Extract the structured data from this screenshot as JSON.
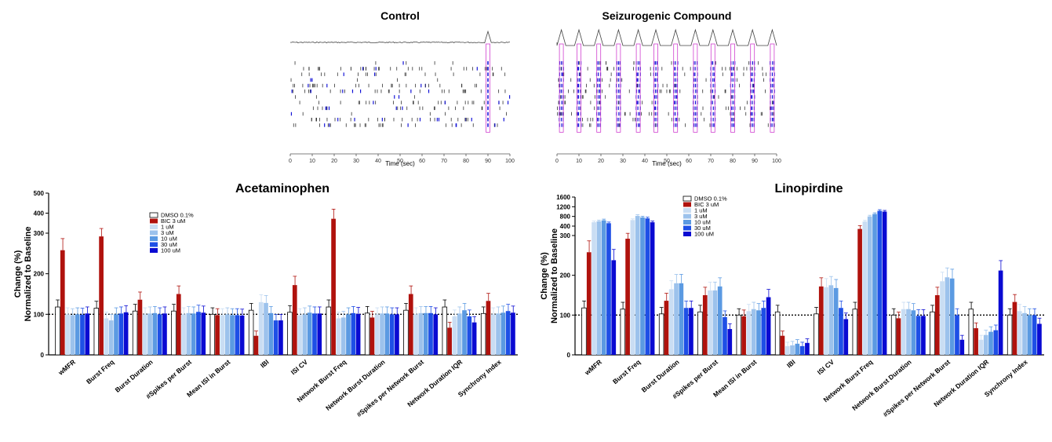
{
  "raster_panels": {
    "control": {
      "title": "Control",
      "xlabel": "Time (sec)",
      "ticks": [
        "0",
        "10",
        "20",
        "30",
        "40",
        "50",
        "60",
        "70",
        "80",
        "90",
        "100"
      ],
      "rows": 12,
      "highlight_times": [
        90
      ]
    },
    "seizure": {
      "title": "Seizurogenic Compound",
      "xlabel": "Time (sec)",
      "ticks": [
        "0",
        "10",
        "20",
        "30",
        "40",
        "50",
        "60",
        "70",
        "80",
        "90",
        "100"
      ],
      "rows": 12,
      "burst_times": [
        2,
        10,
        19,
        28,
        37,
        45,
        54,
        63,
        71,
        80,
        89,
        98
      ]
    }
  },
  "chart_data": [
    {
      "type": "bar",
      "title": "Acetaminophen",
      "ylabel": "Change (%)",
      "ylabel2": "Normalized to Baseline",
      "yticks": [
        "0",
        "100",
        "200",
        "300",
        "400",
        "500"
      ],
      "ylim": [
        0,
        500
      ],
      "broken_axis": "compressed above 300",
      "baseline": 100,
      "categories": [
        "wMFR",
        "Burst Freq",
        "Burst Duration",
        "#Spikes per Burst",
        "Mean ISI in Burst",
        "IBI",
        "ISI CV",
        "Network Burst Freq",
        "Network Burst Duration",
        "#Spikes per Network Burst",
        "Network Duration IQR",
        "Synchrony Index"
      ],
      "series": [
        {
          "name": "DMSO 0.1%",
          "color": "#ffffff",
          "values": [
            118,
            115,
            108,
            108,
            100,
            110,
            105,
            118,
            103,
            110,
            118,
            102
          ]
        },
        {
          "name": "BIC 3 uM",
          "color": "#b0120d",
          "values": [
            258,
            292,
            136,
            150,
            98,
            47,
            172,
            372,
            92,
            150,
            67,
            133
          ]
        },
        {
          "name": "1 uM",
          "color": "#c9ddf3",
          "values": [
            100,
            90,
            100,
            100,
            98,
            130,
            98,
            90,
            100,
            100,
            95,
            100
          ]
        },
        {
          "name": "3 uM",
          "color": "#9cc2ec",
          "values": [
            98,
            85,
            102,
            103,
            100,
            128,
            100,
            92,
            102,
            103,
            102,
            102
          ]
        },
        {
          "name": "10 uM",
          "color": "#5b9ae2",
          "values": [
            100,
            100,
            103,
            102,
            98,
            103,
            104,
            100,
            102,
            103,
            110,
            104
          ]
        },
        {
          "name": "30 uM",
          "color": "#1e4fe6",
          "values": [
            99,
            102,
            100,
            106,
            98,
            85,
            102,
            103,
            100,
            103,
            95,
            108
          ]
        },
        {
          "name": "100 uM",
          "color": "#0a0ad2",
          "values": [
            102,
            105,
            102,
            104,
            97,
            85,
            102,
            101,
            100,
            100,
            80,
            104
          ]
        }
      ],
      "significant": [
        [
          1,
          0
        ],
        [
          1,
          1
        ],
        [
          1,
          2
        ],
        [
          1,
          3
        ],
        [
          1,
          6
        ],
        [
          1,
          7
        ],
        [
          1,
          9
        ],
        [
          1,
          10
        ],
        [
          1,
          11
        ],
        [
          5,
          5
        ],
        [
          6,
          5
        ]
      ]
    },
    {
      "type": "bar",
      "title": "Linopirdine",
      "ylabel": "Change (%)",
      "ylabel2": "Normalized to Baseline",
      "yticks": [
        "0",
        "100",
        "200",
        "300",
        "400",
        "800",
        "1200",
        "1600"
      ],
      "ylim": [
        0,
        1600
      ],
      "broken_axis": "break at 300",
      "baseline": 100,
      "categories": [
        "wMFR",
        "Burst Freq",
        "Burst Duration",
        "#Spikes per Burst",
        "Mean ISI in Burst",
        "IBI",
        "ISI CV",
        "Network Burst Freq",
        "Network Burst Duration",
        "#Spikes per Network Burst",
        "Network Duration IQR",
        "Synchrony Index"
      ],
      "series": [
        {
          "name": "DMSO 0.1%",
          "color": "#ffffff",
          "values": [
            118,
            115,
            103,
            108,
            100,
            108,
            103,
            115,
            100,
            108,
            115,
            100
          ]
        },
        {
          "name": "BIC 3 uM",
          "color": "#b0120d",
          "values": [
            258,
            292,
            136,
            150,
            97,
            48,
            172,
            370,
            92,
            150,
            67,
            133
          ]
        },
        {
          "name": "1 uM",
          "color": "#c9ddf3",
          "values": [
            560,
            650,
            165,
            162,
            110,
            22,
            170,
            590,
            115,
            185,
            38,
            110
          ]
        },
        {
          "name": "3 uM",
          "color": "#9cc2ec",
          "values": [
            600,
            820,
            180,
            162,
            115,
            24,
            175,
            800,
            115,
            195,
            50,
            105
          ]
        },
        {
          "name": "10 uM",
          "color": "#5b9ae2",
          "values": [
            640,
            760,
            180,
            172,
            112,
            28,
            168,
            900,
            112,
            192,
            58,
            100
          ]
        },
        {
          "name": "30 uM",
          "color": "#1e4fe6",
          "values": [
            520,
            720,
            118,
            95,
            118,
            22,
            118,
            1030,
            98,
            100,
            62,
            100
          ]
        },
        {
          "name": "100 uM",
          "color": "#0a0ad2",
          "values": [
            238,
            560,
            118,
            65,
            145,
            30,
            90,
            1000,
            98,
            38,
            212,
            78
          ]
        }
      ],
      "legend": [
        "DMSO 0.1%",
        "BIC 3 uM",
        "1 uM",
        "3 uM",
        "10 uM",
        "30 uM",
        "100 uM"
      ]
    }
  ]
}
